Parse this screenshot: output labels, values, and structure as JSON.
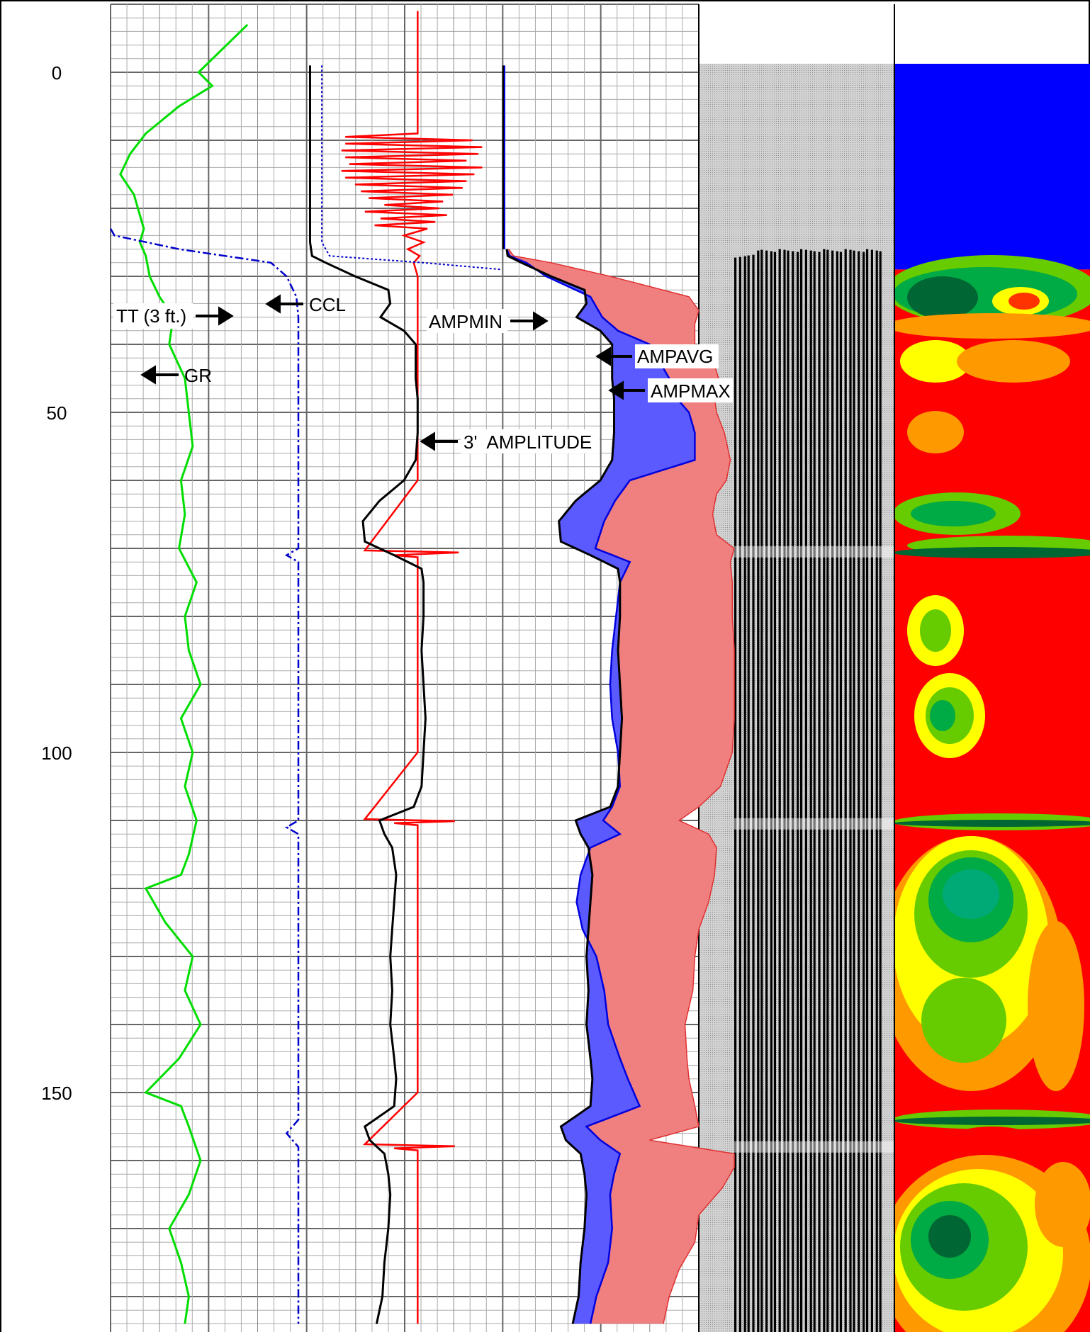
{
  "chart_data": {
    "type": "line",
    "title": "",
    "depth_axis": {
      "ticks": [
        "0",
        "50",
        "100",
        "150"
      ],
      "range": [
        -10,
        185
      ],
      "minor_step": 2,
      "major_step": 10
    },
    "colors": {
      "gr": "#00dd00",
      "ccl": "#ff0000",
      "tt": "#0000cc",
      "amplitude": "#000000",
      "ampmin_fill": "#5a5aff",
      "ampmax_fill": "#f08080",
      "vdl_background": "#c8c8c8",
      "map_top": "#0000ff",
      "map_scale": [
        "#006633",
        "#00aa44",
        "#66cc00",
        "#ffff00",
        "#ff9900",
        "#ff0000"
      ]
    },
    "labels": {
      "gr": "GR",
      "ccl": "CCL",
      "tt": "TT (3 ft.)",
      "amplitude": "3'  AMPLITUDE",
      "ampmin": "AMPMIN",
      "ampavg": "AMPAVG",
      "ampmax": "AMPMAX"
    },
    "series": [
      {
        "key": "gr",
        "track": 1,
        "scale": [
          0,
          100
        ],
        "depth": [
          -7,
          0,
          2,
          5,
          9,
          12,
          15,
          18,
          20,
          23,
          25,
          27,
          30,
          33,
          36,
          40,
          45,
          50,
          55,
          60,
          65,
          70,
          75,
          80,
          85,
          90,
          95,
          100,
          105,
          110,
          115,
          118,
          120,
          125,
          130,
          135,
          140,
          145,
          150,
          152,
          155,
          160,
          165,
          170,
          175,
          180,
          184
        ],
        "value": [
          70,
          45,
          52,
          35,
          18,
          10,
          5,
          12,
          14,
          17,
          15,
          18,
          20,
          25,
          32,
          30,
          38,
          40,
          42,
          36,
          38,
          35,
          44,
          38,
          40,
          46,
          36,
          42,
          38,
          44,
          40,
          36,
          18,
          28,
          42,
          38,
          46,
          35,
          18,
          36,
          40,
          46,
          40,
          30,
          36,
          40,
          38
        ]
      },
      {
        "key": "tt",
        "track": 1,
        "scale": [
          0,
          100
        ],
        "depth": [
          23,
          24,
          26,
          28,
          30,
          33,
          36,
          40,
          60,
          70,
          71,
          72,
          100,
          110,
          111,
          112,
          150,
          154,
          156,
          158,
          184
        ],
        "value": [
          0,
          2,
          35,
          82,
          90,
          95,
          96,
          96,
          96,
          96,
          90,
          96,
          96,
          96,
          90,
          96,
          96,
          96,
          90,
          96,
          96
        ]
      },
      {
        "key": "ccl",
        "track": 1,
        "scale": [
          0,
          100
        ],
        "depth": [
          -9,
          0,
          4,
          9,
          9.5,
          10,
          10.5,
          11,
          11.5,
          12,
          12.5,
          13,
          13.5,
          14,
          14.5,
          15,
          15.5,
          16,
          16.5,
          17,
          17.5,
          18,
          18.5,
          19,
          19.5,
          20,
          20.5,
          21,
          21.5,
          22,
          22.5,
          23,
          24,
          25,
          26,
          27,
          28,
          30,
          40,
          50,
          60,
          70.3,
          70.6,
          71,
          71.3,
          80,
          90,
          100,
          109.8,
          110.1,
          110.4,
          110.7,
          120,
          130,
          140,
          150,
          157.6,
          157.9,
          158.2,
          158.5,
          170,
          184
        ],
        "value": [
          157,
          157,
          157,
          157,
          120,
          185,
          120,
          190,
          118,
          188,
          120,
          182,
          122,
          190,
          118,
          186,
          120,
          182,
          125,
          180,
          128,
          175,
          132,
          170,
          140,
          168,
          130,
          172,
          138,
          166,
          135,
          162,
          150,
          160,
          152,
          158,
          155,
          157,
          157,
          157,
          157,
          130,
          178,
          145,
          157,
          157,
          157,
          157,
          130,
          176,
          145,
          157,
          157,
          157,
          157,
          157,
          130,
          176,
          145,
          157,
          157,
          157
        ]
      },
      {
        "key": "tt_dotted",
        "track": 2,
        "scale": [
          0,
          100
        ],
        "depth": [
          -1,
          25,
          27,
          28,
          29
        ],
        "value": [
          8,
          8,
          12,
          60,
          100
        ]
      },
      {
        "key": "amplitude",
        "track": 2,
        "scale": [
          0,
          200
        ],
        "depth": [
          -1,
          25,
          27,
          28,
          30,
          32,
          34,
          36,
          38,
          40,
          42,
          45,
          48,
          50,
          53,
          57,
          60,
          63,
          66,
          69,
          71,
          73,
          75,
          80,
          85,
          90,
          95,
          100,
          105,
          108,
          110,
          112,
          114,
          118,
          122,
          126,
          130,
          135,
          140,
          145,
          148,
          152,
          155,
          157,
          159,
          162,
          165,
          170,
          175,
          180,
          184
        ],
        "value": [
          4,
          4,
          6,
          20,
          50,
          84,
          86,
          76,
          100,
          112,
          112,
          112,
          114,
          114,
          114,
          112,
          100,
          75,
          58,
          60,
          90,
          118,
          120,
          120,
          118,
          120,
          122,
          120,
          118,
          110,
          75,
          80,
          88,
          92,
          90,
          88,
          86,
          88,
          86,
          90,
          92,
          90,
          60,
          65,
          80,
          84,
          86,
          84,
          80,
          78,
          72
        ]
      },
      {
        "key": "ampmin",
        "track": 3,
        "scale": [
          0,
          200
        ],
        "depth": [
          -1,
          25,
          27,
          28,
          30,
          33,
          36,
          38,
          40,
          42,
          45,
          48,
          50,
          53,
          57,
          60,
          63,
          66,
          70,
          72,
          75,
          80,
          85,
          90,
          95,
          100,
          105,
          108,
          110,
          112,
          114,
          118,
          122,
          126,
          130,
          135,
          140,
          145,
          148,
          152,
          155,
          157,
          159,
          162,
          165,
          170,
          175,
          180,
          184
        ],
        "value": [
          2,
          2,
          8,
          25,
          45,
          90,
          102,
          118,
          150,
          158,
          170,
          178,
          190,
          196,
          196,
          130,
          115,
          104,
          95,
          130,
          120,
          116,
          112,
          110,
          112,
          118,
          120,
          112,
          103,
          120,
          90,
          80,
          76,
          82,
          96,
          104,
          108,
          120,
          128,
          140,
          86,
          100,
          120,
          114,
          110,
          112,
          108,
          96,
          90
        ]
      },
      {
        "key": "ampmax",
        "track": 3,
        "scale": [
          0,
          200
        ],
        "depth": [
          -1,
          25,
          27,
          28,
          30,
          33,
          35,
          37,
          40,
          43,
          45,
          48,
          50,
          53,
          57,
          60,
          62,
          65,
          68,
          70,
          72,
          75,
          80,
          85,
          90,
          95,
          100,
          105,
          108,
          110,
          112,
          114,
          118,
          122,
          126,
          130,
          135,
          140,
          145,
          148,
          152,
          155,
          157,
          159,
          161,
          164,
          168,
          172,
          176,
          180,
          184
        ],
        "value": [
          2,
          2,
          12,
          50,
          110,
          190,
          200,
          196,
          196,
          216,
          220,
          216,
          218,
          226,
          232,
          228,
          218,
          214,
          218,
          236,
          232,
          234,
          234,
          236,
          236,
          236,
          234,
          222,
          200,
          180,
          210,
          218,
          216,
          210,
          200,
          196,
          194,
          186,
          188,
          190,
          196,
          200,
          150,
          236,
          236,
          224,
          200,
          196,
          180,
          170,
          164
        ]
      }
    ]
  },
  "vdl_panel": {
    "background": "#c8c8c8",
    "waveform_start_depth": 26
  },
  "map_panel": {
    "water_bottom_depth": 29
  }
}
